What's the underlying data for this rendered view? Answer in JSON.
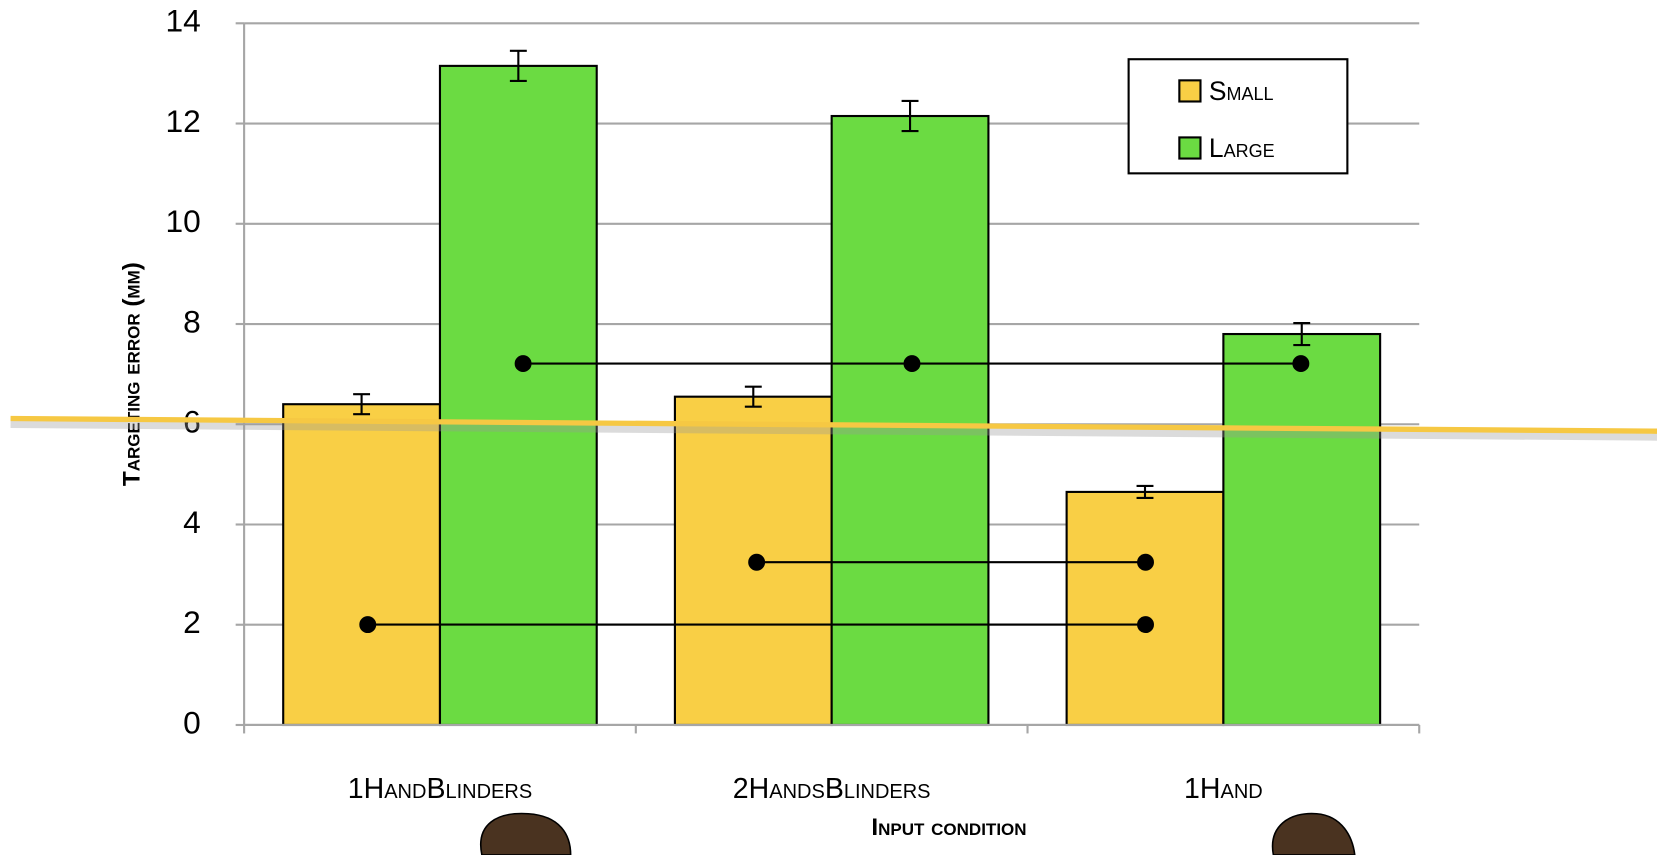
{
  "chart_data": {
    "type": "bar",
    "x_label": "Input condition",
    "y_label": "Targeting error (mm)",
    "categories": [
      "1HandBlinders",
      "2HandsBlinders",
      "1Hand"
    ],
    "series": [
      {
        "name": "Small",
        "color": "#f9cf45",
        "values": [
          6.4,
          6.55,
          4.65
        ],
        "errors": [
          0.2,
          0.2,
          0.12
        ]
      },
      {
        "name": "Large",
        "color": "#6bdb42",
        "values": [
          13.15,
          12.15,
          7.8
        ],
        "errors": [
          0.3,
          0.3,
          0.22
        ]
      }
    ],
    "ylim": [
      0,
      14
    ],
    "yticks": [
      0,
      2,
      4,
      6,
      8,
      10,
      12,
      14
    ],
    "grid": true,
    "legend": "upper right"
  }
}
